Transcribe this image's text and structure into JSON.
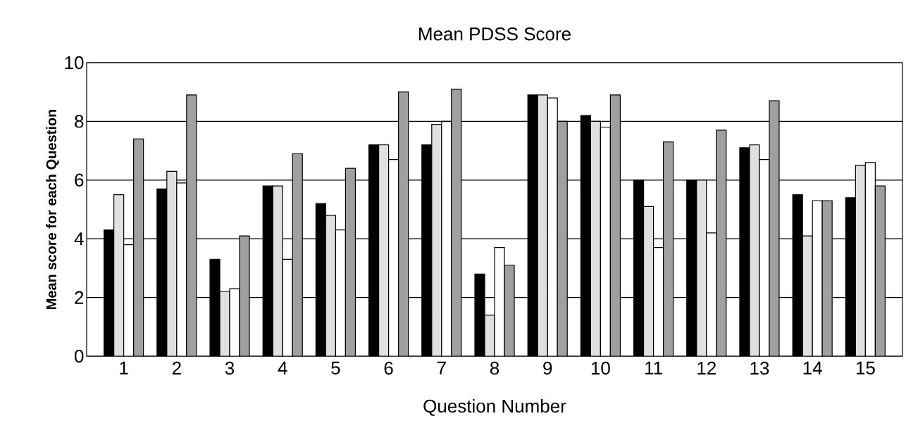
{
  "chart_data": {
    "type": "bar",
    "title": "Mean PDSS Score",
    "xlabel": "Question Number",
    "ylabel": "Mean score for each Question",
    "categories": [
      "1",
      "2",
      "3",
      "4",
      "5",
      "6",
      "7",
      "8",
      "9",
      "10",
      "11",
      "12",
      "13",
      "14",
      "15"
    ],
    "series": [
      {
        "color": "#000000",
        "values": [
          4.3,
          5.7,
          3.3,
          5.8,
          5.2,
          7.2,
          7.2,
          2.8,
          8.9,
          8.2,
          6.0,
          6.0,
          7.1,
          5.5,
          5.4
        ]
      },
      {
        "color": "#e0e0e0",
        "values": [
          5.5,
          6.3,
          2.2,
          5.8,
          4.8,
          7.2,
          7.9,
          1.4,
          8.9,
          8.0,
          5.1,
          6.0,
          7.2,
          4.1,
          6.5
        ]
      },
      {
        "color": "#ffffff",
        "values": [
          3.8,
          5.9,
          2.3,
          3.3,
          4.3,
          6.7,
          8.0,
          3.7,
          8.8,
          7.8,
          3.7,
          4.2,
          6.7,
          5.3,
          6.6
        ]
      },
      {
        "color": "#a0a0a0",
        "values": [
          7.4,
          8.9,
          4.1,
          6.9,
          6.4,
          9.0,
          9.1,
          3.1,
          8.0,
          8.9,
          7.3,
          7.7,
          8.7,
          5.3,
          5.8
        ]
      }
    ],
    "ylim": [
      0,
      10
    ],
    "yticks": [
      0,
      2,
      4,
      6,
      8,
      10
    ],
    "grid": "y"
  }
}
